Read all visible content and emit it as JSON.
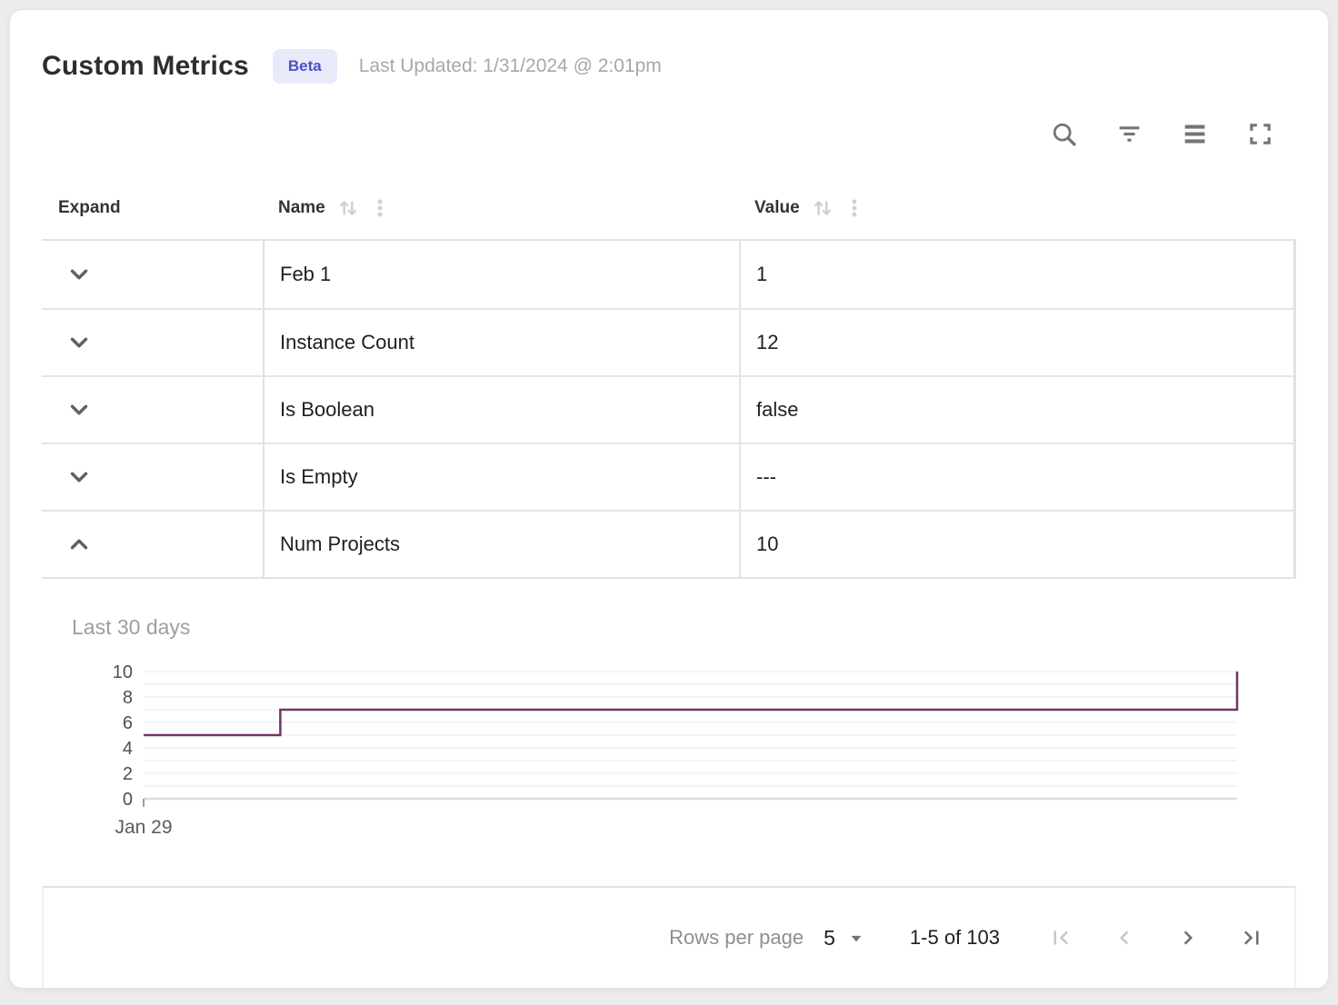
{
  "header": {
    "title": "Custom Metrics",
    "badge": "Beta",
    "last_updated": "Last Updated: 1/31/2024 @ 2:01pm"
  },
  "toolbar": {
    "buttons": [
      "search",
      "filter",
      "density",
      "fullscreen"
    ]
  },
  "table": {
    "columns": [
      {
        "label": "Expand",
        "sortable": false
      },
      {
        "label": "Name",
        "sortable": true
      },
      {
        "label": "Value",
        "sortable": true
      }
    ],
    "rows": [
      {
        "name": "Feb 1",
        "value": "1",
        "expanded": false
      },
      {
        "name": "Instance Count",
        "value": "12",
        "expanded": false
      },
      {
        "name": "Is Boolean",
        "value": "false",
        "expanded": false
      },
      {
        "name": "Is Empty",
        "value": "---",
        "expanded": false
      },
      {
        "name": "Num Projects",
        "value": "10",
        "expanded": true
      }
    ]
  },
  "detail": {
    "title": "Last 30 days"
  },
  "chart_data": {
    "type": "line",
    "title": "Last 30 days",
    "series": [
      {
        "name": "Num Projects",
        "points": [
          [
            0,
            5
          ],
          [
            0.125,
            5
          ],
          [
            0.125,
            7
          ],
          [
            1,
            7
          ],
          [
            1,
            10
          ]
        ]
      }
    ],
    "x_unit": "fraction of 30-day window starting Jan 29",
    "x_tick_labels": [
      {
        "pos": 0,
        "label": "Jan 29"
      }
    ],
    "y_ticks": [
      0,
      2,
      4,
      6,
      8,
      10
    ],
    "y_minor_step": 1,
    "ylim": [
      0,
      10
    ],
    "line_color": "#6e3566",
    "grid": true,
    "legend": "none",
    "description": "Step line: value 5 at Jan 29, steps up to 7 about 4 days in, flat at 7 for the rest of the window, rising to 10 at the right edge"
  },
  "footer": {
    "rows_per_page_label": "Rows per page",
    "rows_per_page_value": "5",
    "range_label": "1-5 of 103",
    "pagination": {
      "first_enabled": false,
      "prev_enabled": false,
      "next_enabled": true,
      "last_enabled": true
    }
  },
  "colors": {
    "badge_bg": "#e9eaf9",
    "badge_text": "#4b51c5",
    "chart_line": "#6e3566",
    "table_border": "#e2e2e2",
    "muted_text": "#9e9e9e",
    "icon_gray": "#757575"
  }
}
